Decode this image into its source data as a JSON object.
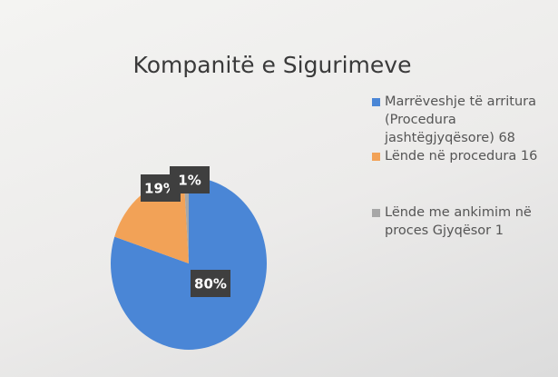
{
  "chart_data": {
    "type": "pie",
    "title": "Kompanitë e Sigurimeve",
    "categories": [
      "Marrëveshje të arritura (Procedura jashtëgjyqësore) 68",
      "Lënde në procedura 16",
      "Lënde me ankimim në proces Gjyqësor 1"
    ],
    "values": [
      80,
      19,
      1
    ],
    "value_labels": [
      "80%",
      "19%",
      "1%"
    ],
    "colors": [
      "#4a86d6",
      "#f2a257",
      "#a7a7a7"
    ]
  }
}
